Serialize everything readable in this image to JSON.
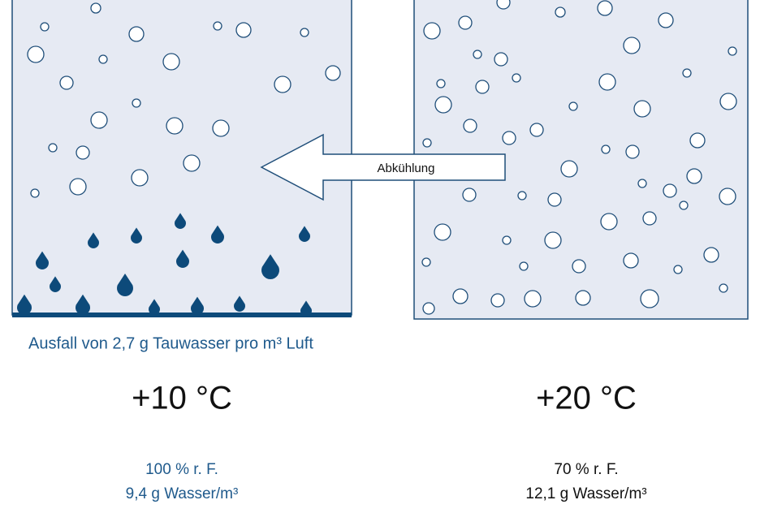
{
  "arrow": {
    "label": "Abkühlung"
  },
  "left": {
    "caption": "Ausfall von 2,7 g Tauwasser pro m³ Luft",
    "temperature": "+10 °C",
    "humidity": "100 % r. F.",
    "water": "9,4 g Wasser/m³"
  },
  "right": {
    "temperature": "+20 °C",
    "humidity": "70 % r. F.",
    "water": "12,1 g Wasser/m³"
  }
}
